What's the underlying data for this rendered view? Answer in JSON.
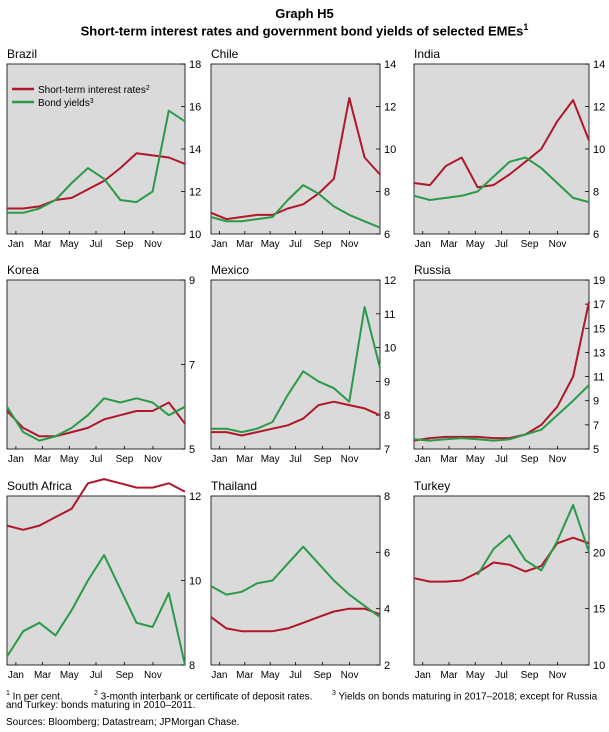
{
  "title": "Graph H5",
  "subtitle": "Short-term interest rates and government bond yields of selected EMEs",
  "subtitle_note": "1",
  "colors": {
    "short_rate": "#b0172a",
    "bond_yield": "#2a9a48",
    "panel_bg": "#dadada"
  },
  "months": [
    "Jan",
    "Mar",
    "May",
    "Jul",
    "Sep",
    "Nov"
  ],
  "legend": {
    "short_rate": "Short-term interest rates",
    "short_rate_note": "2",
    "bond_yield": "Bond yields",
    "bond_yield_note": "3"
  },
  "footnotes": {
    "n1_mark": "1",
    "n1": " In per cent.",
    "n2_mark": "2",
    "n2": " 3-month interbank or certificate of deposit rates.",
    "n3_mark": "3",
    "n3": " Yields on bonds maturing in 2017–2018; except for Russia",
    "n3b": "and Turkey: bonds maturing in 2010–2011.",
    "sources": "Sources: Bloomberg; Datastream; JPMorgan Chase."
  },
  "chart_data": [
    {
      "type": "line",
      "title": "Brazil",
      "ylim": [
        10,
        18
      ],
      "yticks": [
        10,
        12,
        14,
        16,
        18
      ],
      "x": [
        0,
        1,
        2,
        3,
        4,
        5,
        6,
        7,
        8,
        9,
        10,
        11
      ],
      "series": [
        {
          "name": "Short-term interest rates",
          "values": [
            11.2,
            11.2,
            11.3,
            11.6,
            11.7,
            12.1,
            12.5,
            13.1,
            13.8,
            13.7,
            13.6,
            13.3
          ]
        },
        {
          "name": "Bond yields",
          "values": [
            11.0,
            11.0,
            11.2,
            11.6,
            12.4,
            13.1,
            12.6,
            11.6,
            11.5,
            12.0,
            15.8,
            15.3
          ]
        }
      ]
    },
    {
      "type": "line",
      "title": "Chile",
      "ylim": [
        6,
        14
      ],
      "yticks": [
        6,
        8,
        10,
        12,
        14
      ],
      "x": [
        0,
        1,
        2,
        3,
        4,
        5,
        6,
        7,
        8,
        9,
        10,
        11
      ],
      "series": [
        {
          "name": "Short-term interest rates",
          "values": [
            7.0,
            6.7,
            6.8,
            6.9,
            6.9,
            7.2,
            7.4,
            7.9,
            8.6,
            12.4,
            9.6,
            8.8
          ]
        },
        {
          "name": "Bond yields",
          "values": [
            6.8,
            6.6,
            6.6,
            6.7,
            6.8,
            7.6,
            8.3,
            7.9,
            7.3,
            6.9,
            6.6,
            6.3
          ]
        }
      ]
    },
    {
      "type": "line",
      "title": "India",
      "ylim": [
        6,
        14
      ],
      "yticks": [
        6,
        8,
        10,
        12,
        14
      ],
      "x": [
        0,
        1,
        2,
        3,
        4,
        5,
        6,
        7,
        8,
        9,
        10,
        11
      ],
      "series": [
        {
          "name": "Short-term interest rates",
          "values": [
            8.4,
            8.3,
            9.2,
            9.6,
            8.2,
            8.3,
            8.8,
            9.4,
            10.0,
            11.3,
            12.3,
            10.4
          ]
        },
        {
          "name": "Bond yields",
          "values": [
            7.8,
            7.6,
            7.7,
            7.8,
            8.0,
            8.7,
            9.4,
            9.6,
            9.1,
            8.4,
            7.7,
            7.5
          ]
        }
      ]
    },
    {
      "type": "line",
      "title": "Korea",
      "ylim": [
        5,
        9
      ],
      "yticks": [
        5,
        7,
        9
      ],
      "x": [
        0,
        1,
        2,
        3,
        4,
        5,
        6,
        7,
        8,
        9,
        10,
        11
      ],
      "series": [
        {
          "name": "Short-term interest rates",
          "values": [
            5.9,
            5.5,
            5.3,
            5.3,
            5.4,
            5.5,
            5.7,
            5.8,
            5.9,
            5.9,
            6.1,
            5.6
          ]
        },
        {
          "name": "Bond yields",
          "values": [
            6.0,
            5.4,
            5.2,
            5.3,
            5.5,
            5.8,
            6.2,
            6.1,
            6.2,
            6.1,
            5.8,
            6.0
          ]
        }
      ]
    },
    {
      "type": "line",
      "title": "Mexico",
      "ylim": [
        7,
        12
      ],
      "yticks": [
        7,
        8,
        9,
        10,
        11,
        12
      ],
      "x": [
        0,
        1,
        2,
        3,
        4,
        5,
        6,
        7,
        8,
        9,
        10,
        11
      ],
      "series": [
        {
          "name": "Short-term interest rates",
          "values": [
            7.5,
            7.5,
            7.4,
            7.5,
            7.6,
            7.7,
            7.9,
            8.3,
            8.4,
            8.3,
            8.2,
            8.0
          ]
        },
        {
          "name": "Bond yields",
          "values": [
            7.6,
            7.6,
            7.5,
            7.6,
            7.8,
            8.6,
            9.3,
            9.0,
            8.8,
            8.4,
            11.2,
            9.4
          ]
        }
      ]
    },
    {
      "type": "line",
      "title": "Russia",
      "ylim": [
        5,
        19
      ],
      "yticks": [
        5,
        7,
        9,
        11,
        13,
        15,
        17,
        19
      ],
      "x": [
        0,
        1,
        2,
        3,
        4,
        5,
        6,
        7,
        8,
        9,
        10,
        11
      ],
      "series": [
        {
          "name": "Short-term interest rates",
          "values": [
            5.7,
            5.9,
            6.0,
            6.0,
            6.0,
            5.9,
            5.9,
            6.2,
            7.0,
            8.5,
            11.0,
            17.2
          ]
        },
        {
          "name": "Bond yields",
          "values": [
            5.8,
            5.7,
            5.8,
            5.9,
            5.8,
            5.7,
            5.8,
            6.2,
            6.6,
            7.8,
            9.0,
            10.3
          ]
        }
      ]
    },
    {
      "type": "line",
      "title": "South Africa",
      "ylim": [
        8,
        12
      ],
      "yticks": [
        8,
        10,
        12
      ],
      "x": [
        0,
        1,
        2,
        3,
        4,
        5,
        6,
        7,
        8,
        9,
        10,
        11
      ],
      "series": [
        {
          "name": "Short-term interest rates",
          "values": [
            11.3,
            11.2,
            11.3,
            11.5,
            11.7,
            12.3,
            12.4,
            12.3,
            12.2,
            12.2,
            12.3,
            12.1
          ]
        },
        {
          "name": "Bond yields",
          "values": [
            8.2,
            8.8,
            9.0,
            8.7,
            9.3,
            10.0,
            10.6,
            9.8,
            9.0,
            8.9,
            9.7,
            8.0
          ]
        }
      ]
    },
    {
      "type": "line",
      "title": "Thailand",
      "ylim": [
        2,
        8
      ],
      "yticks": [
        2,
        4,
        6,
        8
      ],
      "x": [
        0,
        1,
        2,
        3,
        4,
        5,
        6,
        7,
        8,
        9,
        10,
        11
      ],
      "series": [
        {
          "name": "Short-term interest rates",
          "values": [
            3.7,
            3.3,
            3.2,
            3.2,
            3.2,
            3.3,
            3.5,
            3.7,
            3.9,
            4.0,
            4.0,
            3.8
          ]
        },
        {
          "name": "Bond yields",
          "values": [
            4.8,
            4.5,
            4.6,
            4.9,
            5.0,
            5.6,
            6.2,
            5.6,
            5.0,
            4.5,
            4.1,
            3.7
          ]
        }
      ]
    },
    {
      "type": "line",
      "title": "Turkey",
      "ylim": [
        10,
        25
      ],
      "yticks": [
        10,
        15,
        20,
        25
      ],
      "x": [
        0,
        1,
        2,
        3,
        4,
        5,
        6,
        7,
        8,
        9,
        10,
        11
      ],
      "series": [
        {
          "name": "Short-term interest rates",
          "values": [
            17.7,
            17.4,
            17.4,
            17.5,
            18.2,
            19.1,
            18.9,
            18.3,
            18.8,
            20.8,
            21.3,
            20.8
          ]
        },
        {
          "name": "Bond yields",
          "values": [
            null,
            null,
            null,
            null,
            18.0,
            20.3,
            21.5,
            19.3,
            18.4,
            21.0,
            24.2,
            20.0
          ]
        }
      ]
    }
  ]
}
